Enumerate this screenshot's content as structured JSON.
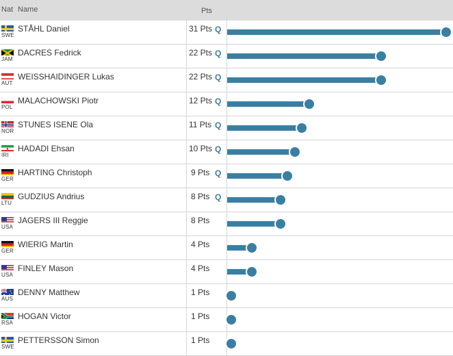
{
  "header": {
    "nat": "Nat",
    "name": "Name",
    "pts": "Pts"
  },
  "colors": {
    "bar": "#3a7fa3",
    "qualifier": "#3b7fa7",
    "header_bg": "#dcdcdc",
    "grid": "#d4d4d4"
  },
  "chart_data": {
    "type": "bar",
    "orientation": "horizontal",
    "xlim": [
      0,
      31
    ],
    "categories": [
      "STÅHL Daniel",
      "DACRES Fedrick",
      "WEISSHAIDINGER Lukas",
      "MALACHOWSKI Piotr",
      "STUNES ISENE Ola",
      "HADADI Ehsan",
      "HARTING Christoph",
      "GUDZIUS Andrius",
      "JAGERS III Reggie",
      "WIERIG Martin",
      "FINLEY Mason",
      "DENNY Matthew",
      "HOGAN Victor",
      "PETTERSSON Simon"
    ],
    "values": [
      31,
      22,
      22,
      12,
      11,
      10,
      9,
      8,
      8,
      4,
      4,
      1,
      1,
      1
    ]
  },
  "rows": [
    {
      "nat": "SWE",
      "flag": "swe",
      "name": "STÅHL Daniel",
      "pts": 31,
      "pts_label": "31 Pts",
      "q": "Q"
    },
    {
      "nat": "JAM",
      "flag": "jam",
      "name": "DACRES Fedrick",
      "pts": 22,
      "pts_label": "22 Pts",
      "q": "Q"
    },
    {
      "nat": "AUT",
      "flag": "aut",
      "name": "WEISSHAIDINGER Lukas",
      "pts": 22,
      "pts_label": "22 Pts",
      "q": "Q"
    },
    {
      "nat": "POL",
      "flag": "pol",
      "name": "MALACHOWSKI Piotr",
      "pts": 12,
      "pts_label": "12 Pts",
      "q": "Q"
    },
    {
      "nat": "NOR",
      "flag": "nor",
      "name": "STUNES ISENE Ola",
      "pts": 11,
      "pts_label": "11 Pts",
      "q": "Q"
    },
    {
      "nat": "IRI",
      "flag": "iri",
      "name": "HADADI Ehsan",
      "pts": 10,
      "pts_label": "10 Pts",
      "q": "Q"
    },
    {
      "nat": "GER",
      "flag": "ger",
      "name": "HARTING Christoph",
      "pts": 9,
      "pts_label": "9 Pts",
      "q": "Q"
    },
    {
      "nat": "LTU",
      "flag": "ltu",
      "name": "GUDZIUS Andrius",
      "pts": 8,
      "pts_label": "8 Pts",
      "q": "Q"
    },
    {
      "nat": "USA",
      "flag": "usa",
      "name": "JAGERS III Reggie",
      "pts": 8,
      "pts_label": "8 Pts",
      "q": ""
    },
    {
      "nat": "GER",
      "flag": "ger",
      "name": "WIERIG Martin",
      "pts": 4,
      "pts_label": "4 Pts",
      "q": ""
    },
    {
      "nat": "USA",
      "flag": "usa",
      "name": "FINLEY Mason",
      "pts": 4,
      "pts_label": "4 Pts",
      "q": ""
    },
    {
      "nat": "AUS",
      "flag": "aus",
      "name": "DENNY Matthew",
      "pts": 1,
      "pts_label": "1 Pts",
      "q": ""
    },
    {
      "nat": "RSA",
      "flag": "rsa",
      "name": "HOGAN Victor",
      "pts": 1,
      "pts_label": "1 Pts",
      "q": ""
    },
    {
      "nat": "SWE",
      "flag": "swe",
      "name": "PETTERSSON Simon",
      "pts": 1,
      "pts_label": "1 Pts",
      "q": ""
    }
  ]
}
